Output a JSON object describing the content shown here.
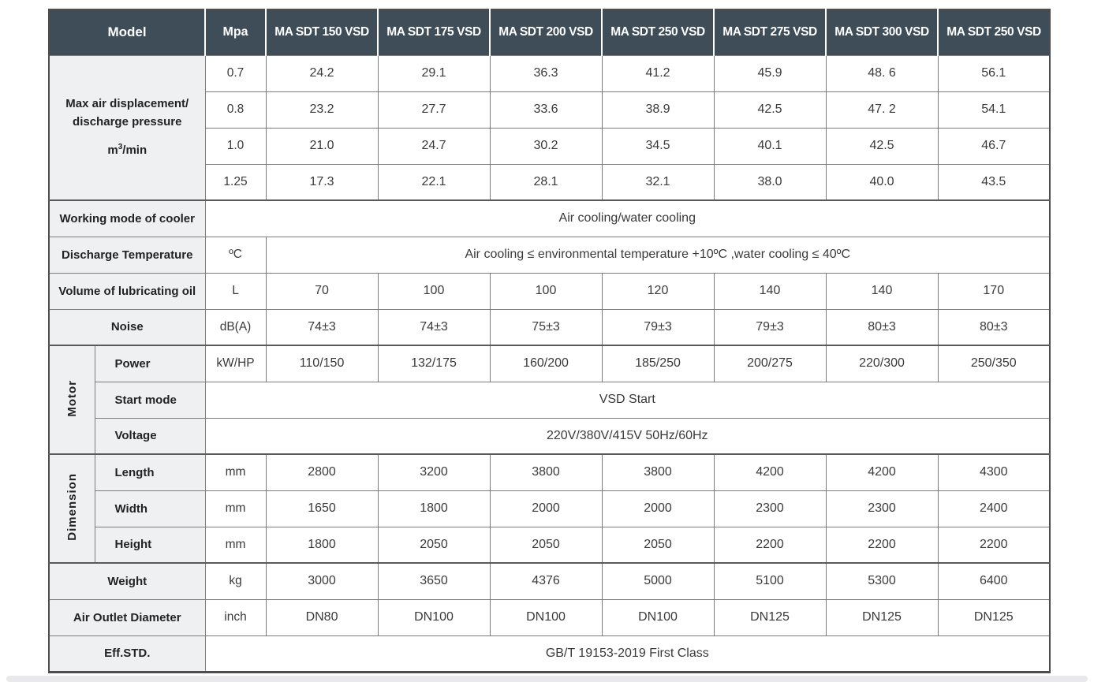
{
  "header": {
    "model_label": "Model",
    "pressure_unit_label": "Mpa",
    "models": [
      "MA SDT 150 VSD",
      "MA SDT 175 VSD",
      "MA SDT 200 VSD",
      "MA SDT 250 VSD",
      "MA SDT 275 VSD",
      "MA SDT 300 VSD",
      "MA SDT 250 VSD"
    ]
  },
  "displacement": {
    "label_line1": "Max air displacement/",
    "label_line2": "discharge pressure",
    "unit_prefix": "m",
    "unit_sup": "3",
    "unit_suffix": "/min",
    "rows": [
      {
        "pressure": "0.7",
        "values": [
          "24.2",
          "29.1",
          "36.3",
          "41.2",
          "45.9",
          "48. 6",
          "56.1"
        ]
      },
      {
        "pressure": "0.8",
        "values": [
          "23.2",
          "27.7",
          "33.6",
          "38.9",
          "42.5",
          "47. 2",
          "54.1"
        ]
      },
      {
        "pressure": "1.0",
        "values": [
          "21.0",
          "24.7",
          "30.2",
          "34.5",
          "40.1",
          "42.5",
          "46.7"
        ]
      },
      {
        "pressure": "1.25",
        "values": [
          "17.3",
          "22.1",
          "28.1",
          "32.1",
          "38.0",
          "40.0",
          "43.5"
        ]
      }
    ]
  },
  "cooler": {
    "label": "Working mode of cooler",
    "value": "Air cooling/water cooling"
  },
  "discharge_temp": {
    "label": "Discharge Temperature",
    "unit": "ºC",
    "value": "Air cooling ≤ environmental temperature +10ºC ,water cooling ≤ 40ºC"
  },
  "oil": {
    "label": "Volume of lubricating oil",
    "unit": "L",
    "values": [
      "70",
      "100",
      "100",
      "120",
      "140",
      "140",
      "170"
    ]
  },
  "noise": {
    "label": "Noise",
    "unit": "dB(A)",
    "values": [
      "74±3",
      "74±3",
      "75±3",
      "79±3",
      "79±3",
      "80±3",
      "80±3"
    ]
  },
  "motor": {
    "group_label": "Motor",
    "power": {
      "label": "Power",
      "unit": "kW/HP",
      "values": [
        "110/150",
        "132/175",
        "160/200",
        "185/250",
        "200/275",
        "220/300",
        "250/350"
      ]
    },
    "start_mode": {
      "label": "Start mode",
      "value": "VSD Start"
    },
    "voltage": {
      "label": "Voltage",
      "value": "220V/380V/415V  50Hz/60Hz"
    }
  },
  "dimension": {
    "group_label": "Dimension",
    "length": {
      "label": "Length",
      "unit": "mm",
      "values": [
        "2800",
        "3200",
        "3800",
        "3800",
        "4200",
        "4200",
        "4300"
      ]
    },
    "width": {
      "label": "Width",
      "unit": "mm",
      "values": [
        "1650",
        "1800",
        "2000",
        "2000",
        "2300",
        "2300",
        "2400"
      ]
    },
    "height": {
      "label": "Height",
      "unit": "mm",
      "values": [
        "1800",
        "2050",
        "2050",
        "2050",
        "2200",
        "2200",
        "2200"
      ]
    }
  },
  "weight": {
    "label": "Weight",
    "unit": "kg",
    "values": [
      "3000",
      "3650",
      "4376",
      "5000",
      "5100",
      "5300",
      "6400"
    ]
  },
  "air_outlet": {
    "label": "Air Outlet Diameter",
    "unit": "inch",
    "values": [
      "DN80",
      "DN100",
      "DN100",
      "DN100",
      "DN125",
      "DN125",
      "DN125"
    ]
  },
  "eff_std": {
    "label": "Eff.STD.",
    "value": "GB/T 19153-2019 First Class"
  },
  "colors": {
    "header_bg": "#3e4d57",
    "label_bg": "#eef0f1",
    "border": "#7c7c7c",
    "outer_border": "#4d4d4d"
  }
}
